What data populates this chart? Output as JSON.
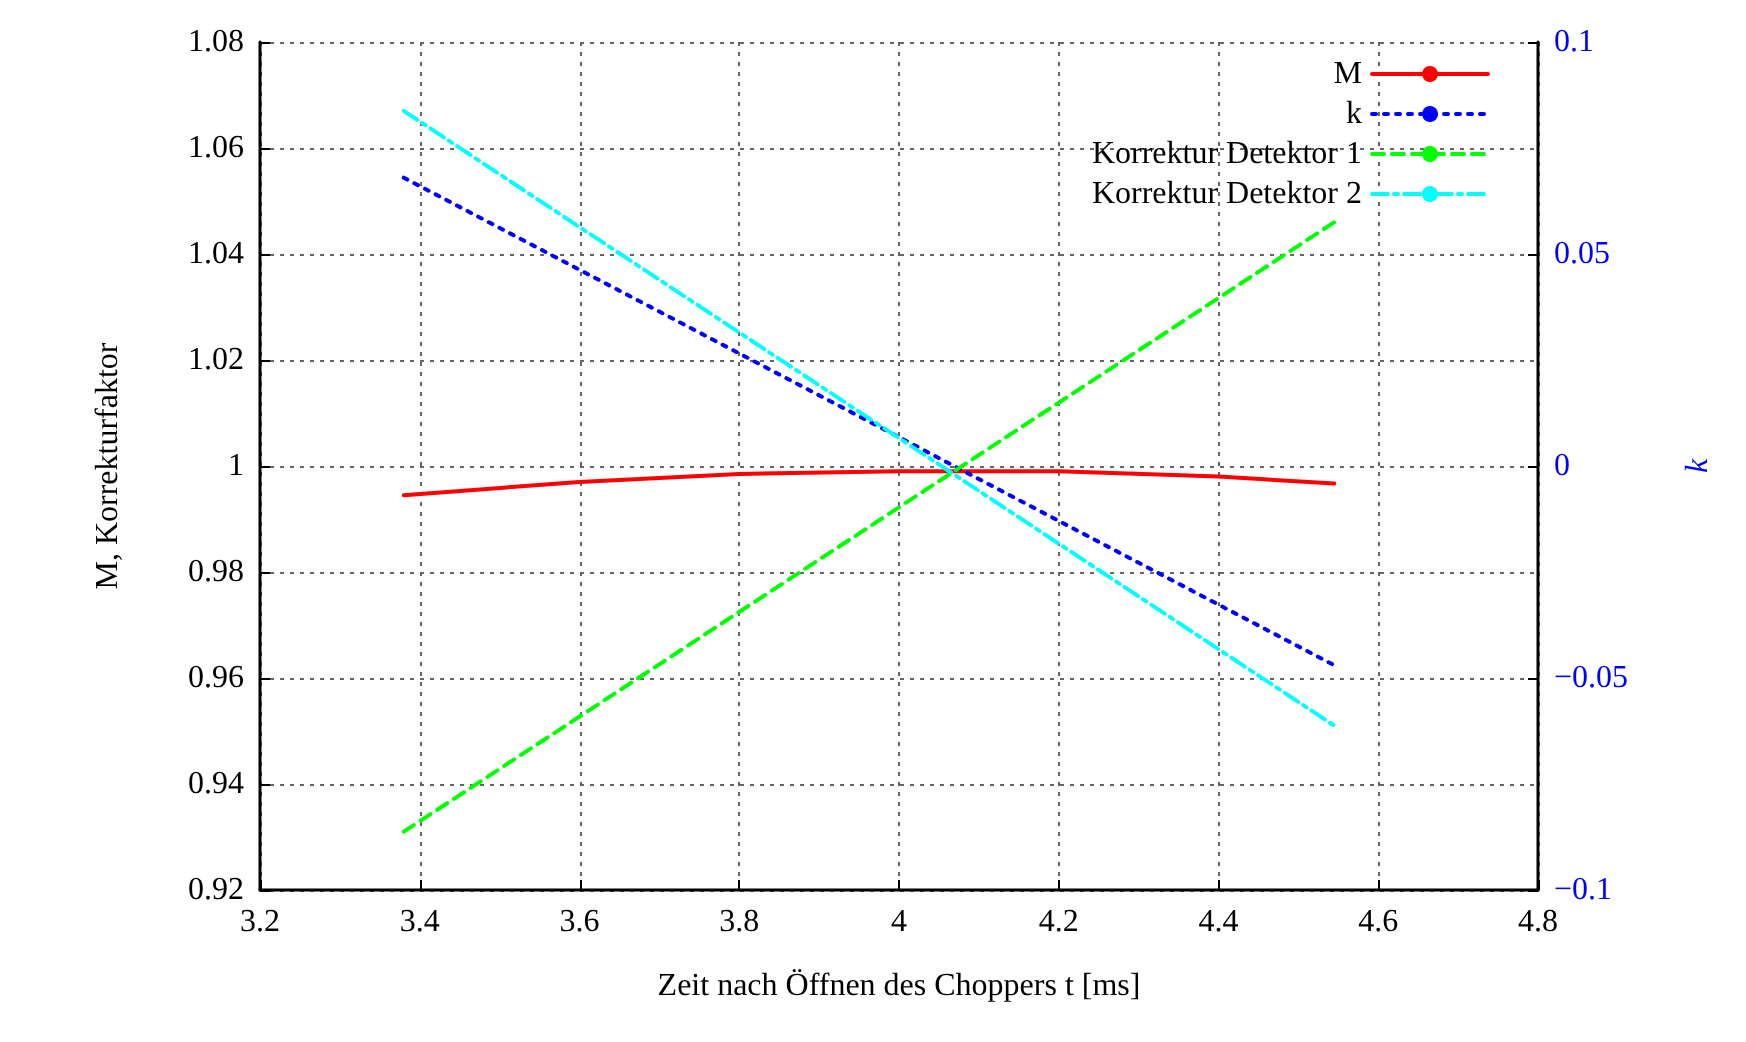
{
  "chart_data": {
    "type": "line",
    "xlabel": "Zeit nach Öffnen des Choppers t [ms]",
    "ylabel": "M, Korrekturfaktor",
    "y2label": "k",
    "xlim": [
      3.2,
      4.8
    ],
    "xticks": [
      3.2,
      3.4,
      3.6,
      3.8,
      4,
      4.2,
      4.4,
      4.6,
      4.8
    ],
    "ylim": [
      0.92,
      1.08
    ],
    "yticks": [
      0.92,
      0.94,
      0.96,
      0.98,
      1,
      1.02,
      1.04,
      1.06,
      1.08
    ],
    "y2lim": [
      -0.1,
      0.1
    ],
    "y2ticks": [
      -0.1,
      -0.05,
      0,
      0.05,
      0.1
    ],
    "grid": true,
    "legend": "top right",
    "marker": "none",
    "series": [
      {
        "name": "M",
        "color": "#ff0000",
        "line_style": "solid",
        "x": [
          3.38,
          3.6,
          3.8,
          4.0,
          4.2,
          4.4,
          4.545
        ],
        "values": [
          0.9945,
          0.997,
          0.9985,
          0.999,
          0.999,
          0.998,
          0.9967
        ]
      },
      {
        "name": "k",
        "color": "#0000ff",
        "line_style": "dotted",
        "axis": "y2",
        "x": [
          3.38,
          4.545
        ],
        "values": [
          0.068,
          -0.047
        ]
      },
      {
        "name": "Korrektur Detektor 1",
        "color": "#00ff00",
        "line_style": "dashed",
        "x": [
          3.38,
          4.545
        ],
        "values": [
          0.931,
          1.046
        ]
      },
      {
        "name": "Korrektur Detektor 2",
        "color": "#00ffff",
        "line_style": "dashdot",
        "x": [
          3.38,
          4.545
        ],
        "values": [
          1.067,
          0.951
        ]
      }
    ]
  }
}
